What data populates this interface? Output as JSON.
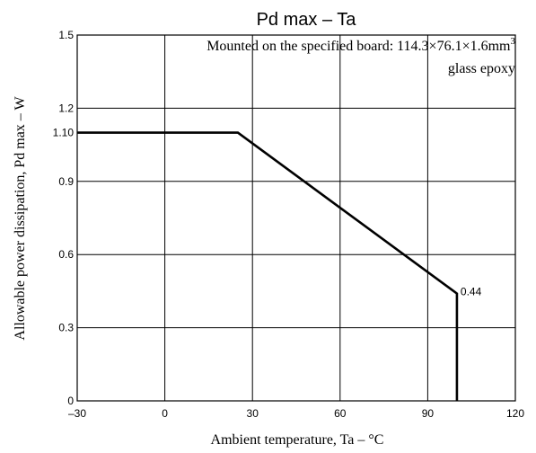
{
  "chart_data": {
    "type": "line",
    "title": "Pd max  –  Ta",
    "xlabel": "Ambient temperature, Ta  –  °C",
    "ylabel": "Allowable power dissipation, Pd max  –  W",
    "xlim": [
      -30,
      120
    ],
    "ylim": [
      0,
      1.5
    ],
    "x_ticks": [
      -30,
      0,
      30,
      60,
      90,
      120
    ],
    "x_tick_labels": [
      "–30",
      "0",
      "30",
      "60",
      "90",
      "120"
    ],
    "y_ticks": [
      0,
      0.3,
      0.6,
      0.9,
      1.2,
      1.5
    ],
    "y_tick_labels": [
      "0",
      "0.3",
      "0.6",
      "0.9",
      "1.2",
      "1.5"
    ],
    "y_extra_tick": {
      "value": 1.1,
      "label": "1.10"
    },
    "grid": true,
    "annotation": {
      "line1_prefix": "Mounted on the specified board: 114.3×76.1×1.6mm",
      "line1_sup": "3",
      "line2": "glass epoxy"
    },
    "series": [
      {
        "x": [
          -30,
          25,
          100,
          100
        ],
        "y": [
          1.1,
          1.1,
          0.44,
          0
        ]
      }
    ],
    "data_labels": [
      {
        "x": 100,
        "y": 0.44,
        "label": "0.44"
      }
    ]
  }
}
